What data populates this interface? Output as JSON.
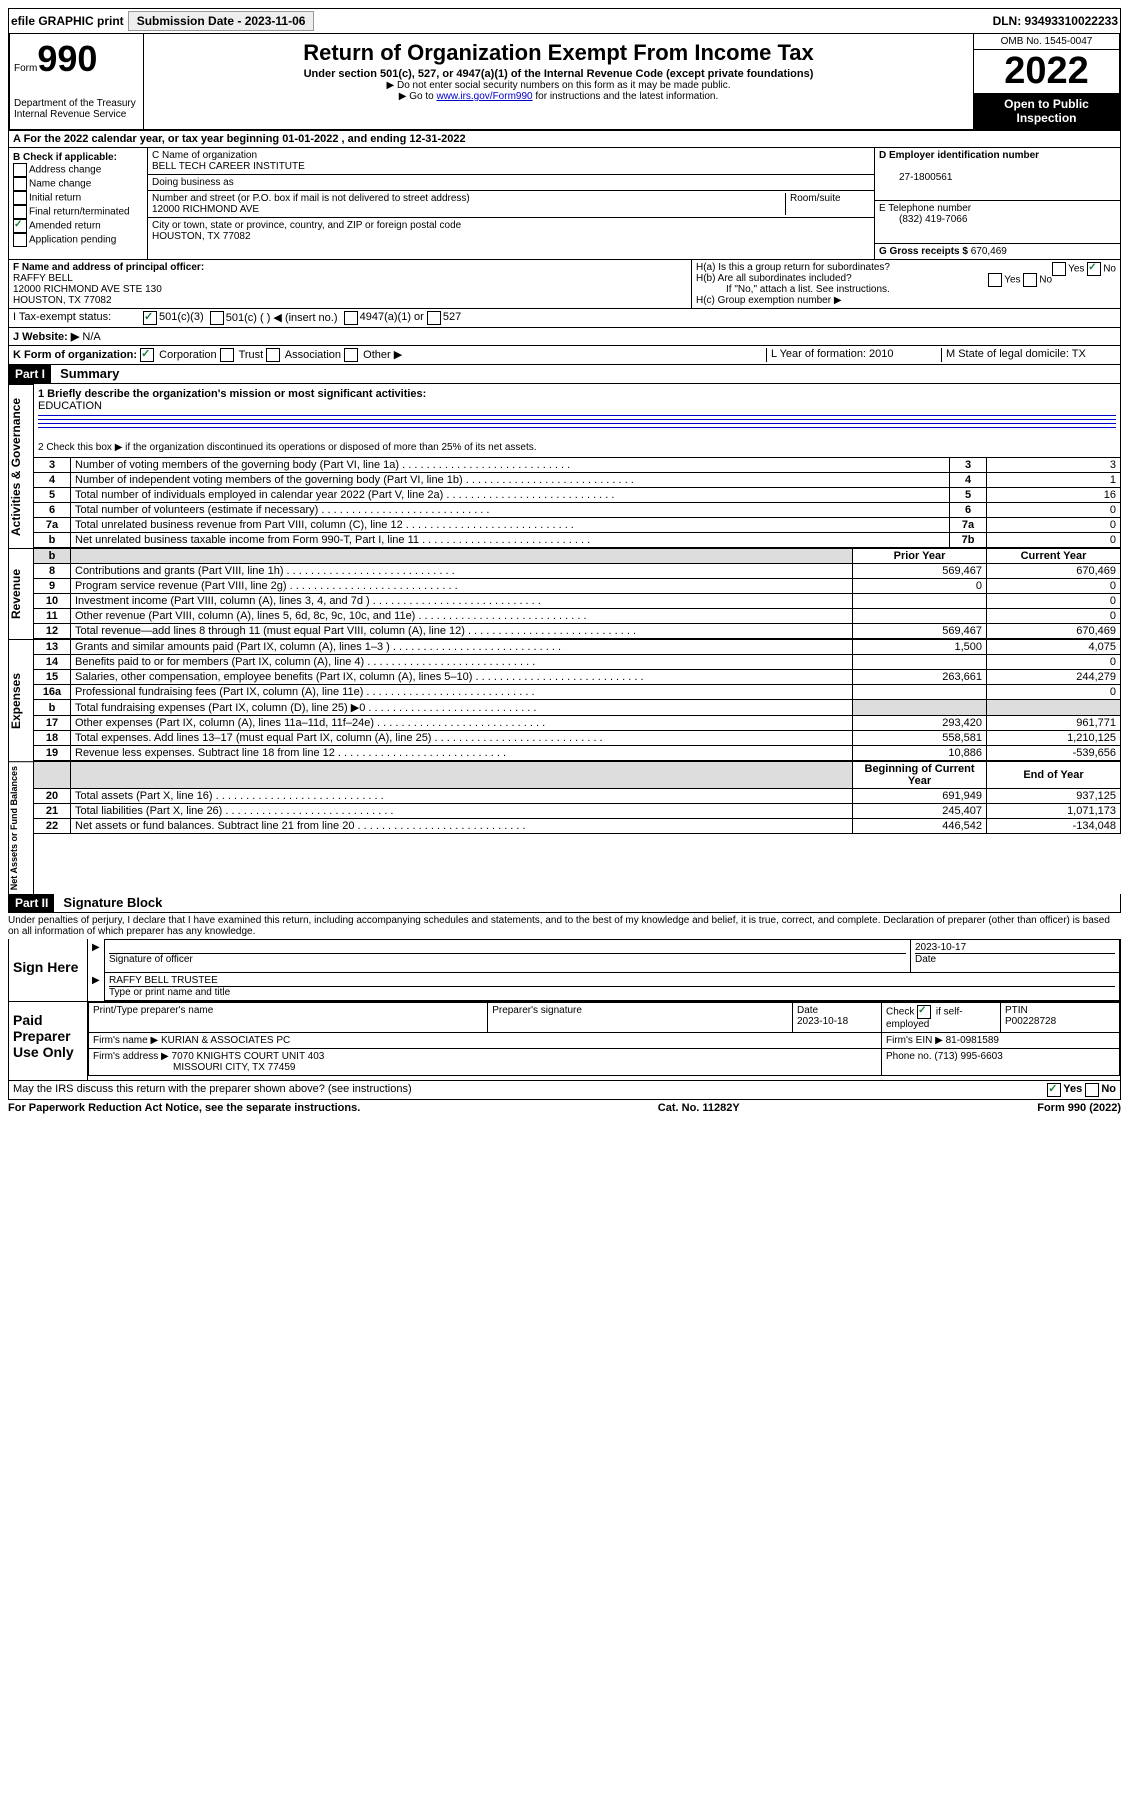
{
  "topbar": {
    "efile": "efile GRAPHIC print",
    "subdate_lbl": "Submission Date - 2023-11-06",
    "dln": "DLN: 93493310022233"
  },
  "header": {
    "form_small": "Form",
    "form_num": "990",
    "dept": "Department of the Treasury\nInternal Revenue Service",
    "title": "Return of Organization Exempt From Income Tax",
    "sub": "Under section 501(c), 527, or 4947(a)(1) of the Internal Revenue Code (except private foundations)",
    "note1": "▶ Do not enter social security numbers on this form as it may be made public.",
    "note2_pre": "▶ Go to ",
    "note2_link": "www.irs.gov/Form990",
    "note2_post": " for instructions and the latest information.",
    "omb": "OMB No. 1545-0047",
    "year": "2022",
    "open": "Open to Public Inspection"
  },
  "lineA": "A For the 2022 calendar year, or tax year beginning 01-01-2022   , and ending 12-31-2022",
  "boxB": {
    "hdr": "B Check if applicable:",
    "opts": [
      "Address change",
      "Name change",
      "Initial return",
      "Final return/terminated",
      "Amended return",
      "Application pending"
    ],
    "checked": {
      "Amended return": true
    }
  },
  "boxC": {
    "lbl": "C Name of organization",
    "name": "BELL TECH CAREER INSTITUTE",
    "dba": "Doing business as",
    "addr_lbl": "Number and street (or P.O. box if mail is not delivered to street address)",
    "room": "Room/suite",
    "addr": "12000 RICHMOND AVE",
    "city_lbl": "City or town, state or province, country, and ZIP or foreign postal code",
    "city": "HOUSTON, TX  77082"
  },
  "boxD": {
    "lbl": "D Employer identification number",
    "val": "27-1800561"
  },
  "boxE": {
    "lbl": "E Telephone number",
    "val": "(832) 419-7066"
  },
  "boxG": {
    "lbl": "G Gross receipts $",
    "val": "670,469"
  },
  "boxF": {
    "lbl": "F Name and address of principal officer:",
    "name": "RAFFY BELL",
    "addr1": "12000 RICHMOND AVE STE 130",
    "addr2": "HOUSTON, TX  77082"
  },
  "boxH": {
    "a": "H(a)  Is this a group return for subordinates?",
    "b": "H(b)  Are all subordinates included?",
    "b_note": "If \"No,\" attach a list. See instructions.",
    "c": "H(c)  Group exemption number ▶",
    "yes": "Yes",
    "no": "No"
  },
  "boxI": {
    "lbl": "I   Tax-exempt status:",
    "o1": "501(c)(3)",
    "o2": "501(c) (   ) ◀ (insert no.)",
    "o3": "4947(a)(1) or",
    "o4": "527"
  },
  "boxJ": {
    "lbl": "J   Website: ▶",
    "val": "N/A"
  },
  "boxK": {
    "lbl": "K Form of organization:",
    "o1": "Corporation",
    "o2": "Trust",
    "o3": "Association",
    "o4": "Other ▶"
  },
  "boxL": {
    "lbl": "L Year of formation: 2010"
  },
  "boxM": {
    "lbl": "M State of legal domicile: TX"
  },
  "part1": {
    "hdr": "Part I",
    "title": "Summary",
    "q1": "1  Briefly describe the organization's mission or most significant activities:",
    "q1v": "EDUCATION",
    "q2": "2   Check this box ▶        if the organization discontinued its operations or disposed of more than 25% of its net assets."
  },
  "gov": {
    "label": "Activities & Governance",
    "rows": [
      {
        "n": "3",
        "t": "Number of voting members of the governing body (Part VI, line 1a)",
        "b": "3",
        "v": "3"
      },
      {
        "n": "4",
        "t": "Number of independent voting members of the governing body (Part VI, line 1b)",
        "b": "4",
        "v": "1"
      },
      {
        "n": "5",
        "t": "Total number of individuals employed in calendar year 2022 (Part V, line 2a)",
        "b": "5",
        "v": "16"
      },
      {
        "n": "6",
        "t": "Total number of volunteers (estimate if necessary)",
        "b": "6",
        "v": "0"
      },
      {
        "n": "7a",
        "t": "Total unrelated business revenue from Part VIII, column (C), line 12",
        "b": "7a",
        "v": "0"
      },
      {
        "n": "b",
        "t": "Net unrelated business taxable income from Form 990-T, Part I, line 11",
        "b": "7b",
        "v": "0"
      }
    ]
  },
  "rev": {
    "label": "Revenue",
    "hdr_prior": "Prior Year",
    "hdr_curr": "Current Year",
    "rows": [
      {
        "n": "8",
        "t": "Contributions and grants (Part VIII, line 1h)",
        "p": "569,467",
        "c": "670,469"
      },
      {
        "n": "9",
        "t": "Program service revenue (Part VIII, line 2g)",
        "p": "0",
        "c": "0"
      },
      {
        "n": "10",
        "t": "Investment income (Part VIII, column (A), lines 3, 4, and 7d )",
        "p": "",
        "c": "0"
      },
      {
        "n": "11",
        "t": "Other revenue (Part VIII, column (A), lines 5, 6d, 8c, 9c, 10c, and 11e)",
        "p": "",
        "c": "0"
      },
      {
        "n": "12",
        "t": "Total revenue—add lines 8 through 11 (must equal Part VIII, column (A), line 12)",
        "p": "569,467",
        "c": "670,469"
      }
    ]
  },
  "exp": {
    "label": "Expenses",
    "rows": [
      {
        "n": "13",
        "t": "Grants and similar amounts paid (Part IX, column (A), lines 1–3 )",
        "p": "1,500",
        "c": "4,075"
      },
      {
        "n": "14",
        "t": "Benefits paid to or for members (Part IX, column (A), line 4)",
        "p": "",
        "c": "0"
      },
      {
        "n": "15",
        "t": "Salaries, other compensation, employee benefits (Part IX, column (A), lines 5–10)",
        "p": "263,661",
        "c": "244,279"
      },
      {
        "n": "16a",
        "t": "Professional fundraising fees (Part IX, column (A), line 11e)",
        "p": "",
        "c": "0"
      },
      {
        "n": "b",
        "t": "Total fundraising expenses (Part IX, column (D), line 25) ▶0",
        "p": "grey",
        "c": "grey"
      },
      {
        "n": "17",
        "t": "Other expenses (Part IX, column (A), lines 11a–11d, 11f–24e)",
        "p": "293,420",
        "c": "961,771"
      },
      {
        "n": "18",
        "t": "Total expenses. Add lines 13–17 (must equal Part IX, column (A), line 25)",
        "p": "558,581",
        "c": "1,210,125"
      },
      {
        "n": "19",
        "t": "Revenue less expenses. Subtract line 18 from line 12",
        "p": "10,886",
        "c": "-539,656"
      }
    ]
  },
  "net": {
    "label": "Net Assets or Fund Balances",
    "hdr_beg": "Beginning of Current Year",
    "hdr_end": "End of Year",
    "rows": [
      {
        "n": "20",
        "t": "Total assets (Part X, line 16)",
        "p": "691,949",
        "c": "937,125"
      },
      {
        "n": "21",
        "t": "Total liabilities (Part X, line 26)",
        "p": "245,407",
        "c": "1,071,173"
      },
      {
        "n": "22",
        "t": "Net assets or fund balances. Subtract line 21 from line 20",
        "p": "446,542",
        "c": "-134,048"
      }
    ]
  },
  "part2": {
    "hdr": "Part II",
    "title": "Signature Block",
    "decl": "Under penalties of perjury, I declare that I have examined this return, including accompanying schedules and statements, and to the best of my knowledge and belief, it is true, correct, and complete. Declaration of preparer (other than officer) is based on all information of which preparer has any knowledge."
  },
  "sign": {
    "here": "Sign Here",
    "sig_off": "Signature of officer",
    "date": "Date",
    "date_v": "2023-10-17",
    "name": "RAFFY BELL TRUSTEE",
    "name_lbl": "Type or print name and title"
  },
  "prep": {
    "title": "Paid Preparer Use Only",
    "h1": "Print/Type preparer's name",
    "h2": "Preparer's signature",
    "h3": "Date",
    "h3v": "2023-10-18",
    "h4": "Check         if self-employed",
    "h5": "PTIN",
    "h5v": "P00228728",
    "firm_lbl": "Firm's name   ▶",
    "firm": "KURIAN & ASSOCIATES PC",
    "ein_lbl": "Firm's EIN ▶",
    "ein": "81-0981589",
    "addr_lbl": "Firm's address ▶",
    "addr1": "7070 KNIGHTS COURT UNIT 403",
    "addr2": "MISSOURI CITY, TX  77459",
    "phone_lbl": "Phone no.",
    "phone": "(713) 995-6603"
  },
  "irs_q": "May the IRS discuss this return with the preparer shown above? (see instructions)",
  "footer": {
    "pra": "For Paperwork Reduction Act Notice, see the separate instructions.",
    "cat": "Cat. No. 11282Y",
    "form": "Form 990 (2022)"
  }
}
